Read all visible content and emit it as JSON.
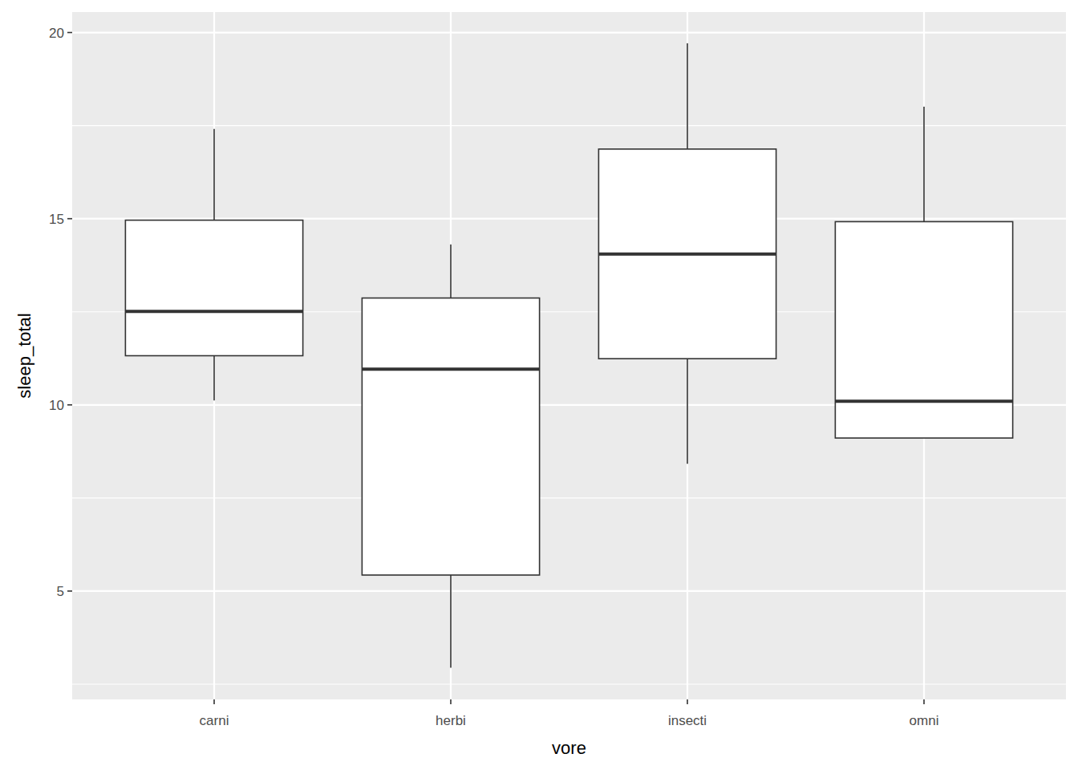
{
  "chart_data": {
    "type": "box",
    "x_label": "vore",
    "y_label": "sleep_total",
    "categories": [
      "carni",
      "herbi",
      "insecti",
      "omni"
    ],
    "min": [
      10.12,
      2.94,
      8.42,
      9.11
    ],
    "q1": [
      11.32,
      5.43,
      11.24,
      9.11
    ],
    "median": [
      12.51,
      10.96,
      14.05,
      10.1
    ],
    "q3": [
      14.96,
      12.87,
      16.87,
      14.92
    ],
    "max": [
      17.41,
      14.31,
      19.71,
      18.01
    ],
    "ylim": [
      2.09,
      20.55
    ],
    "yticks": [
      5,
      10,
      15,
      20
    ],
    "grid": true
  }
}
